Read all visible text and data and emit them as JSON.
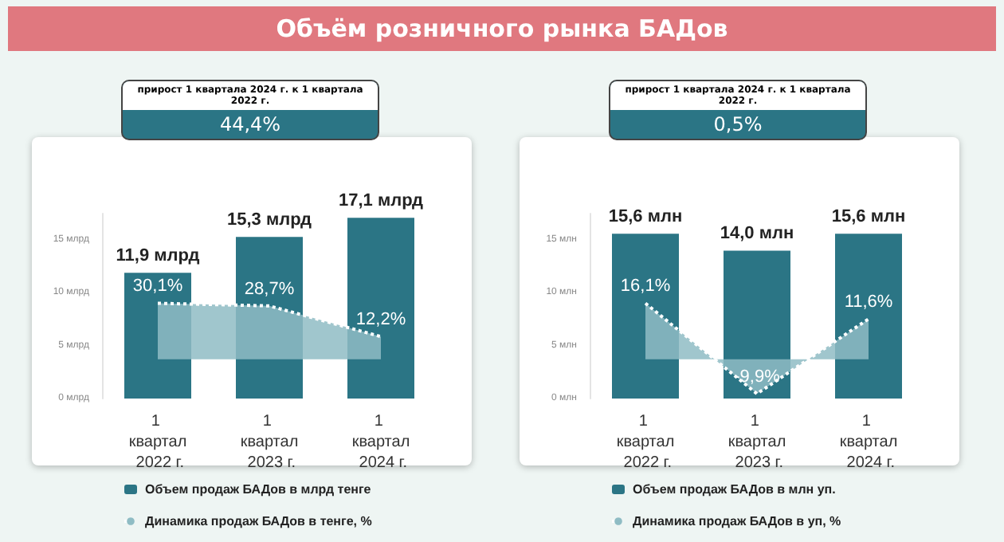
{
  "chart_data": [
    {
      "type": "bar",
      "title": "Объём розничного рынка БАДов",
      "annotations": [
        "прирост 1 квартала 2024 г. к 1 квартала 2022 г.",
        "44,4%"
      ],
      "categories": [
        "1 квартал 2022 г.",
        "1 квартал 2023 г.",
        "1 квартал 2024 г."
      ],
      "series": [
        {
          "name": "Объем продаж БАДов в млрд тенге",
          "color": "#2b7585",
          "values": [
            11.9,
            15.3,
            17.1
          ],
          "value_labels": [
            "11,9 млрд",
            "15,3 млрд",
            "17,1 млрд"
          ]
        },
        {
          "name": "Динамика продаж БАДов в тенге, %",
          "type": "area",
          "axis": "y2",
          "color": "#8fbcc4",
          "line_style": "dotted",
          "values": [
            30.1,
            28.7,
            12.2
          ],
          "value_labels": [
            "30,1%",
            "28,7%",
            "12,2%"
          ]
        }
      ],
      "ylim": [
        0,
        17.5
      ],
      "yticks": [
        {
          "value": 0,
          "label": "0 млрд"
        },
        {
          "value": 5,
          "label": "5 млрд"
        },
        {
          "value": 10,
          "label": "10 млрд"
        },
        {
          "value": 15,
          "label": "15 млрд"
        }
      ],
      "grid": false,
      "legend": "bottom"
    },
    {
      "type": "bar",
      "annotations": [
        "прирост 1 квартала 2024 г. к 1 квартала 2022 г.",
        "0,5%"
      ],
      "categories": [
        "1 квартал 2022 г.",
        "1 квартал 2023 г.",
        "1 квартал 2024 г."
      ],
      "series": [
        {
          "name": "Объем продаж БАДов в млн уп.",
          "color": "#2b7585",
          "values": [
            15.6,
            14.0,
            15.6
          ],
          "value_labels": [
            "15,6 млн",
            "14,0 млн",
            "15,6 млн"
          ]
        },
        {
          "name": "Динамика продаж БАДов в уп, %",
          "type": "area",
          "axis": "y2",
          "color": "#8fbcc4",
          "line_style": "dotted",
          "values": [
            16.1,
            -9.9,
            11.6
          ],
          "value_labels": [
            "16,1%",
            "-9,9%",
            "11,6%"
          ]
        }
      ],
      "ylim": [
        0,
        17.5
      ],
      "yticks": [
        {
          "value": 0,
          "label": "0 млн"
        },
        {
          "value": 5,
          "label": "5 млн"
        },
        {
          "value": 10,
          "label": "10 млн"
        },
        {
          "value": 15,
          "label": "15 млн"
        }
      ],
      "grid": false,
      "legend": "bottom"
    }
  ]
}
